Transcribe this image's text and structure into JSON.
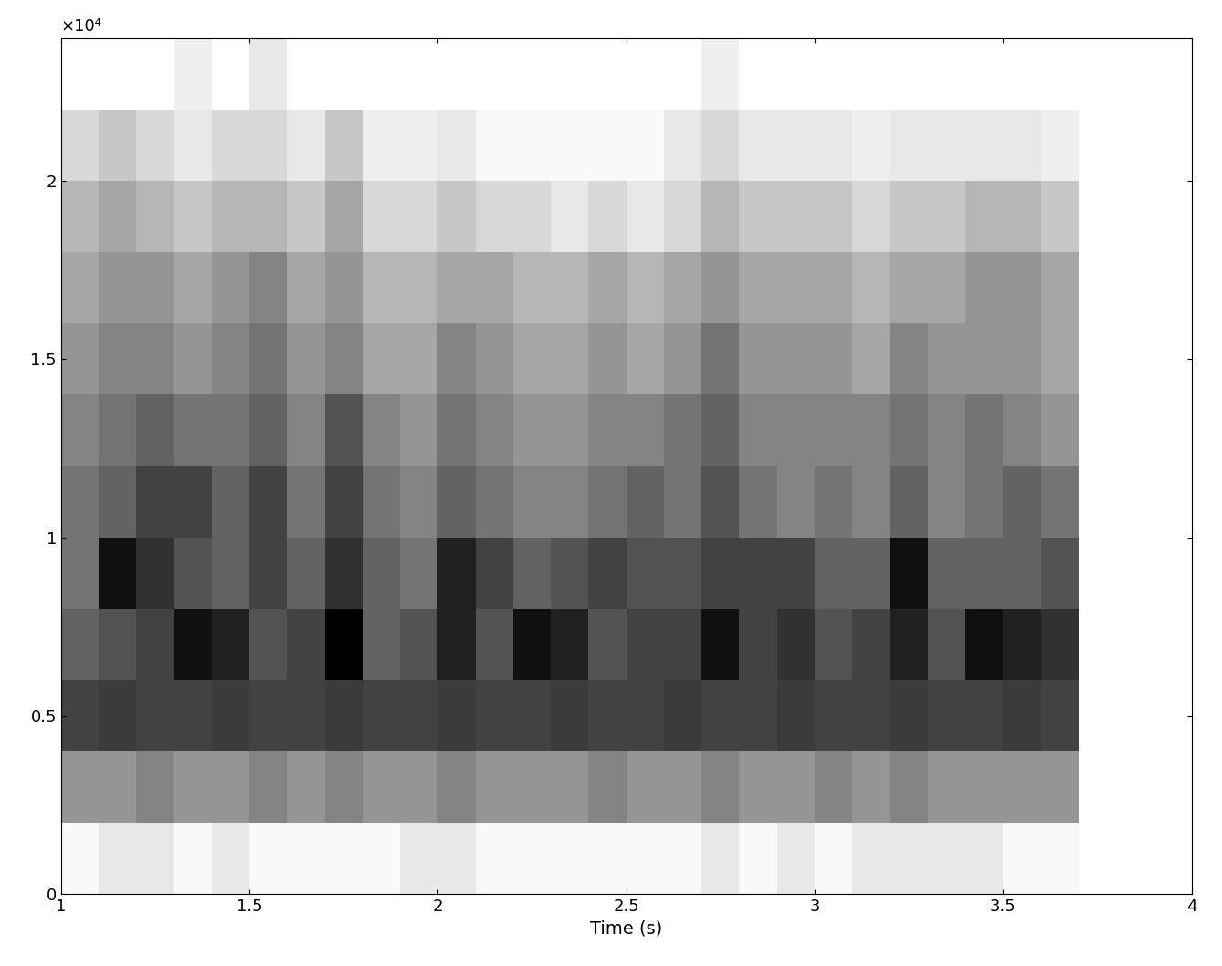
{
  "chart_data": {
    "type": "heatmap",
    "xlabel": "Time (s)",
    "annotation": "×10⁴",
    "xlim": [
      1,
      4
    ],
    "xticks": [
      1,
      1.5,
      2,
      2.5,
      3,
      3.5,
      4
    ],
    "ylim": [
      0,
      2.4
    ],
    "yticks": [
      0,
      0.5,
      1,
      1.5,
      2
    ],
    "grid": false,
    "x_bins": [
      1.0,
      1.1,
      1.2,
      1.3,
      1.4,
      1.5,
      1.6,
      1.7,
      1.8,
      1.9,
      2.0,
      2.1,
      2.2,
      2.3,
      2.4,
      2.5,
      2.6,
      2.7,
      2.8,
      2.9,
      3.0,
      3.1,
      3.2,
      3.3,
      3.4,
      3.5,
      3.6,
      3.7
    ],
    "y_bins": [
      0,
      0.2,
      0.4,
      0.6,
      0.8,
      1.0,
      1.2,
      1.4,
      1.6,
      1.8,
      2.0,
      2.2,
      2.4
    ],
    "cells": [
      [
        0.05,
        0.1,
        0.1,
        0.05,
        0.1,
        0.05,
        0.05,
        0.05,
        0.05,
        0.1,
        0.1,
        0.05,
        0.05,
        0.05,
        0.05,
        0.05,
        0.05,
        0.1,
        0.05,
        0.1,
        0.05,
        0.1,
        0.1,
        0.1,
        0.1,
        0.05,
        0.05
      ],
      [
        0.35,
        0.35,
        0.4,
        0.35,
        0.35,
        0.4,
        0.35,
        0.4,
        0.35,
        0.35,
        0.4,
        0.35,
        0.35,
        0.35,
        0.4,
        0.35,
        0.35,
        0.4,
        0.35,
        0.35,
        0.4,
        0.35,
        0.4,
        0.35,
        0.35,
        0.35,
        0.35
      ],
      [
        0.6,
        0.62,
        0.6,
        0.6,
        0.62,
        0.6,
        0.6,
        0.62,
        0.6,
        0.6,
        0.62,
        0.6,
        0.6,
        0.62,
        0.6,
        0.6,
        0.62,
        0.6,
        0.6,
        0.62,
        0.6,
        0.6,
        0.62,
        0.6,
        0.6,
        0.62,
        0.6
      ],
      [
        0.5,
        0.55,
        0.6,
        0.75,
        0.7,
        0.55,
        0.6,
        0.8,
        0.5,
        0.55,
        0.7,
        0.55,
        0.75,
        0.7,
        0.55,
        0.6,
        0.6,
        0.75,
        0.6,
        0.65,
        0.55,
        0.6,
        0.7,
        0.55,
        0.75,
        0.7,
        0.65
      ],
      [
        0.45,
        0.75,
        0.65,
        0.55,
        0.5,
        0.6,
        0.5,
        0.65,
        0.5,
        0.45,
        0.7,
        0.6,
        0.5,
        0.55,
        0.6,
        0.55,
        0.55,
        0.6,
        0.6,
        0.6,
        0.5,
        0.5,
        0.75,
        0.5,
        0.5,
        0.5,
        0.55
      ],
      [
        0.45,
        0.5,
        0.6,
        0.6,
        0.5,
        0.6,
        0.45,
        0.6,
        0.45,
        0.4,
        0.5,
        0.45,
        0.4,
        0.4,
        0.45,
        0.5,
        0.45,
        0.55,
        0.45,
        0.4,
        0.45,
        0.4,
        0.5,
        0.4,
        0.45,
        0.5,
        0.45
      ],
      [
        0.4,
        0.45,
        0.5,
        0.45,
        0.45,
        0.5,
        0.4,
        0.55,
        0.4,
        0.35,
        0.45,
        0.4,
        0.35,
        0.35,
        0.4,
        0.4,
        0.45,
        0.5,
        0.4,
        0.4,
        0.4,
        0.4,
        0.45,
        0.4,
        0.45,
        0.4,
        0.35
      ],
      [
        0.35,
        0.4,
        0.4,
        0.35,
        0.4,
        0.45,
        0.35,
        0.4,
        0.3,
        0.3,
        0.4,
        0.35,
        0.3,
        0.3,
        0.35,
        0.3,
        0.35,
        0.45,
        0.35,
        0.35,
        0.35,
        0.3,
        0.4,
        0.35,
        0.35,
        0.35,
        0.3
      ],
      [
        0.3,
        0.35,
        0.35,
        0.3,
        0.35,
        0.4,
        0.3,
        0.35,
        0.25,
        0.25,
        0.3,
        0.3,
        0.25,
        0.25,
        0.3,
        0.25,
        0.3,
        0.35,
        0.3,
        0.3,
        0.3,
        0.25,
        0.3,
        0.3,
        0.35,
        0.35,
        0.3
      ],
      [
        0.25,
        0.3,
        0.25,
        0.2,
        0.25,
        0.25,
        0.2,
        0.3,
        0.15,
        0.15,
        0.2,
        0.15,
        0.15,
        0.1,
        0.15,
        0.1,
        0.15,
        0.25,
        0.2,
        0.2,
        0.2,
        0.15,
        0.2,
        0.2,
        0.25,
        0.25,
        0.2
      ],
      [
        0.15,
        0.2,
        0.15,
        0.1,
        0.15,
        0.15,
        0.1,
        0.2,
        0.08,
        0.08,
        0.1,
        0.05,
        0.05,
        0.05,
        0.05,
        0.05,
        0.1,
        0.15,
        0.1,
        0.1,
        0.1,
        0.08,
        0.1,
        0.1,
        0.1,
        0.1,
        0.08
      ],
      [
        0.03,
        0.03,
        0.03,
        0.08,
        0.03,
        0.1,
        0.03,
        0.03,
        0.03,
        0.03,
        0.03,
        0.03,
        0.03,
        0.03,
        0.03,
        0.03,
        0.03,
        0.08,
        0.03,
        0.03,
        0.03,
        0.03,
        0.03,
        0.03,
        0.03,
        0.03,
        0.03
      ]
    ]
  }
}
